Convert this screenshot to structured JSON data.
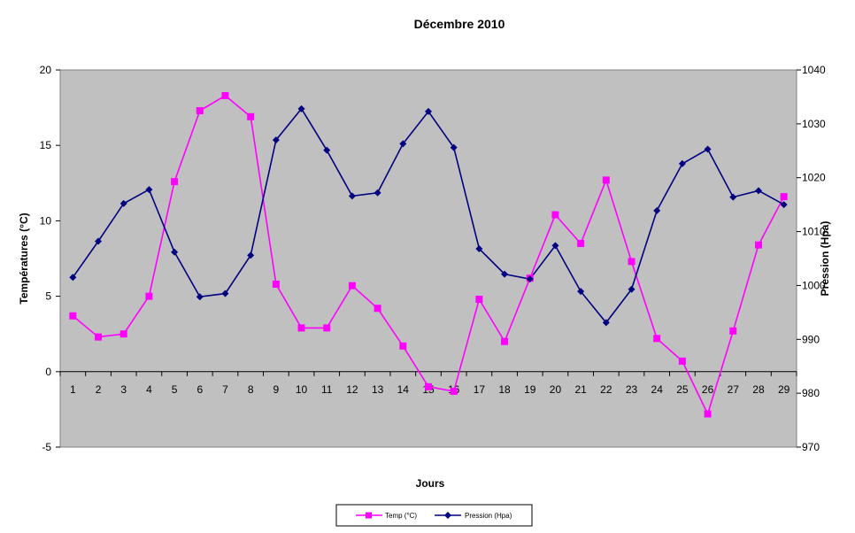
{
  "chart_data": {
    "type": "line",
    "title": "Décembre 2010",
    "xlabel": "Jours",
    "ylabel": "Températures (°C)",
    "y2label": "Pression (Hpa)",
    "x": [
      1,
      2,
      3,
      4,
      5,
      6,
      7,
      8,
      9,
      10,
      11,
      12,
      13,
      14,
      15,
      16,
      17,
      18,
      19,
      20,
      21,
      22,
      23,
      24,
      25,
      26,
      27,
      28,
      29
    ],
    "ylim": [
      -5,
      20
    ],
    "yticks": [
      -5,
      0,
      5,
      10,
      15,
      20
    ],
    "y2lim": [
      970,
      1040
    ],
    "y2ticks": [
      970,
      980,
      990,
      1000,
      1010,
      1020,
      1030,
      1040
    ],
    "grid": false,
    "plot_background": "#c0c0c0",
    "legend_position": "bottom",
    "series": [
      {
        "name": "Temp (°C)",
        "axis": "left",
        "color": "#ff00ff",
        "marker": "square",
        "values": [
          3.7,
          2.3,
          2.5,
          5.0,
          12.6,
          17.3,
          18.3,
          16.9,
          5.8,
          2.9,
          2.9,
          5.7,
          4.2,
          1.7,
          -1.0,
          -1.3,
          4.8,
          2.0,
          6.2,
          10.4,
          8.5,
          12.7,
          7.3,
          2.2,
          0.7,
          -2.8,
          2.7,
          8.4,
          11.6
        ]
      },
      {
        "name": "Pression (Hpa)",
        "axis": "right",
        "color": "#000080",
        "marker": "diamond",
        "values": [
          1001.5,
          1008.2,
          1015.2,
          1017.8,
          1006.2,
          997.9,
          998.5,
          1005.6,
          1027.0,
          1032.8,
          1025.1,
          1016.6,
          1017.2,
          1026.3,
          1032.3,
          1025.6,
          1006.8,
          1002.1,
          1001.2,
          1007.4,
          998.9,
          993.1,
          999.3,
          1013.9,
          1022.6,
          1025.3,
          1016.4,
          1017.6,
          1015.0
        ]
      }
    ]
  }
}
